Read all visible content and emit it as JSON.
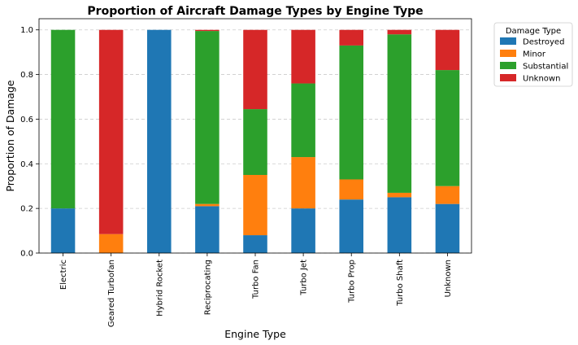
{
  "chart_data": {
    "type": "bar",
    "stacked": true,
    "title": "Proportion of Aircraft Damage Types by Engine Type",
    "xlabel": "Engine Type",
    "ylabel": "Proportion of Damage",
    "ylim": [
      0,
      1.05
    ],
    "yticks": [
      "0.0",
      "0.2",
      "0.4",
      "0.6",
      "0.8",
      "1.0"
    ],
    "grid": "y-dashed",
    "categories": [
      "Electric",
      "Geared Turbofan",
      "Hybrid Rocket",
      "Reciprocating",
      "Turbo Fan",
      "Turbo Jet",
      "Turbo Prop",
      "Turbo Shaft",
      "Unknown"
    ],
    "series": [
      {
        "name": "Destroyed",
        "color": "#1f77b4",
        "values": [
          0.2,
          0.0,
          1.0,
          0.21,
          0.08,
          0.2,
          0.24,
          0.25,
          0.22
        ]
      },
      {
        "name": "Minor",
        "color": "#ff7f0e",
        "values": [
          0.0,
          0.085,
          0.0,
          0.01,
          0.27,
          0.23,
          0.09,
          0.02,
          0.08
        ]
      },
      {
        "name": "Substantial",
        "color": "#2ca02c",
        "values": [
          0.8,
          0.0,
          0.0,
          0.775,
          0.295,
          0.33,
          0.6,
          0.71,
          0.52
        ]
      },
      {
        "name": "Unknown",
        "color": "#d62728",
        "values": [
          0.0,
          0.915,
          0.0,
          0.005,
          0.355,
          0.24,
          0.07,
          0.02,
          0.18
        ]
      }
    ],
    "legend": {
      "title": "Damage Type",
      "placement": "outside-top-right"
    }
  }
}
